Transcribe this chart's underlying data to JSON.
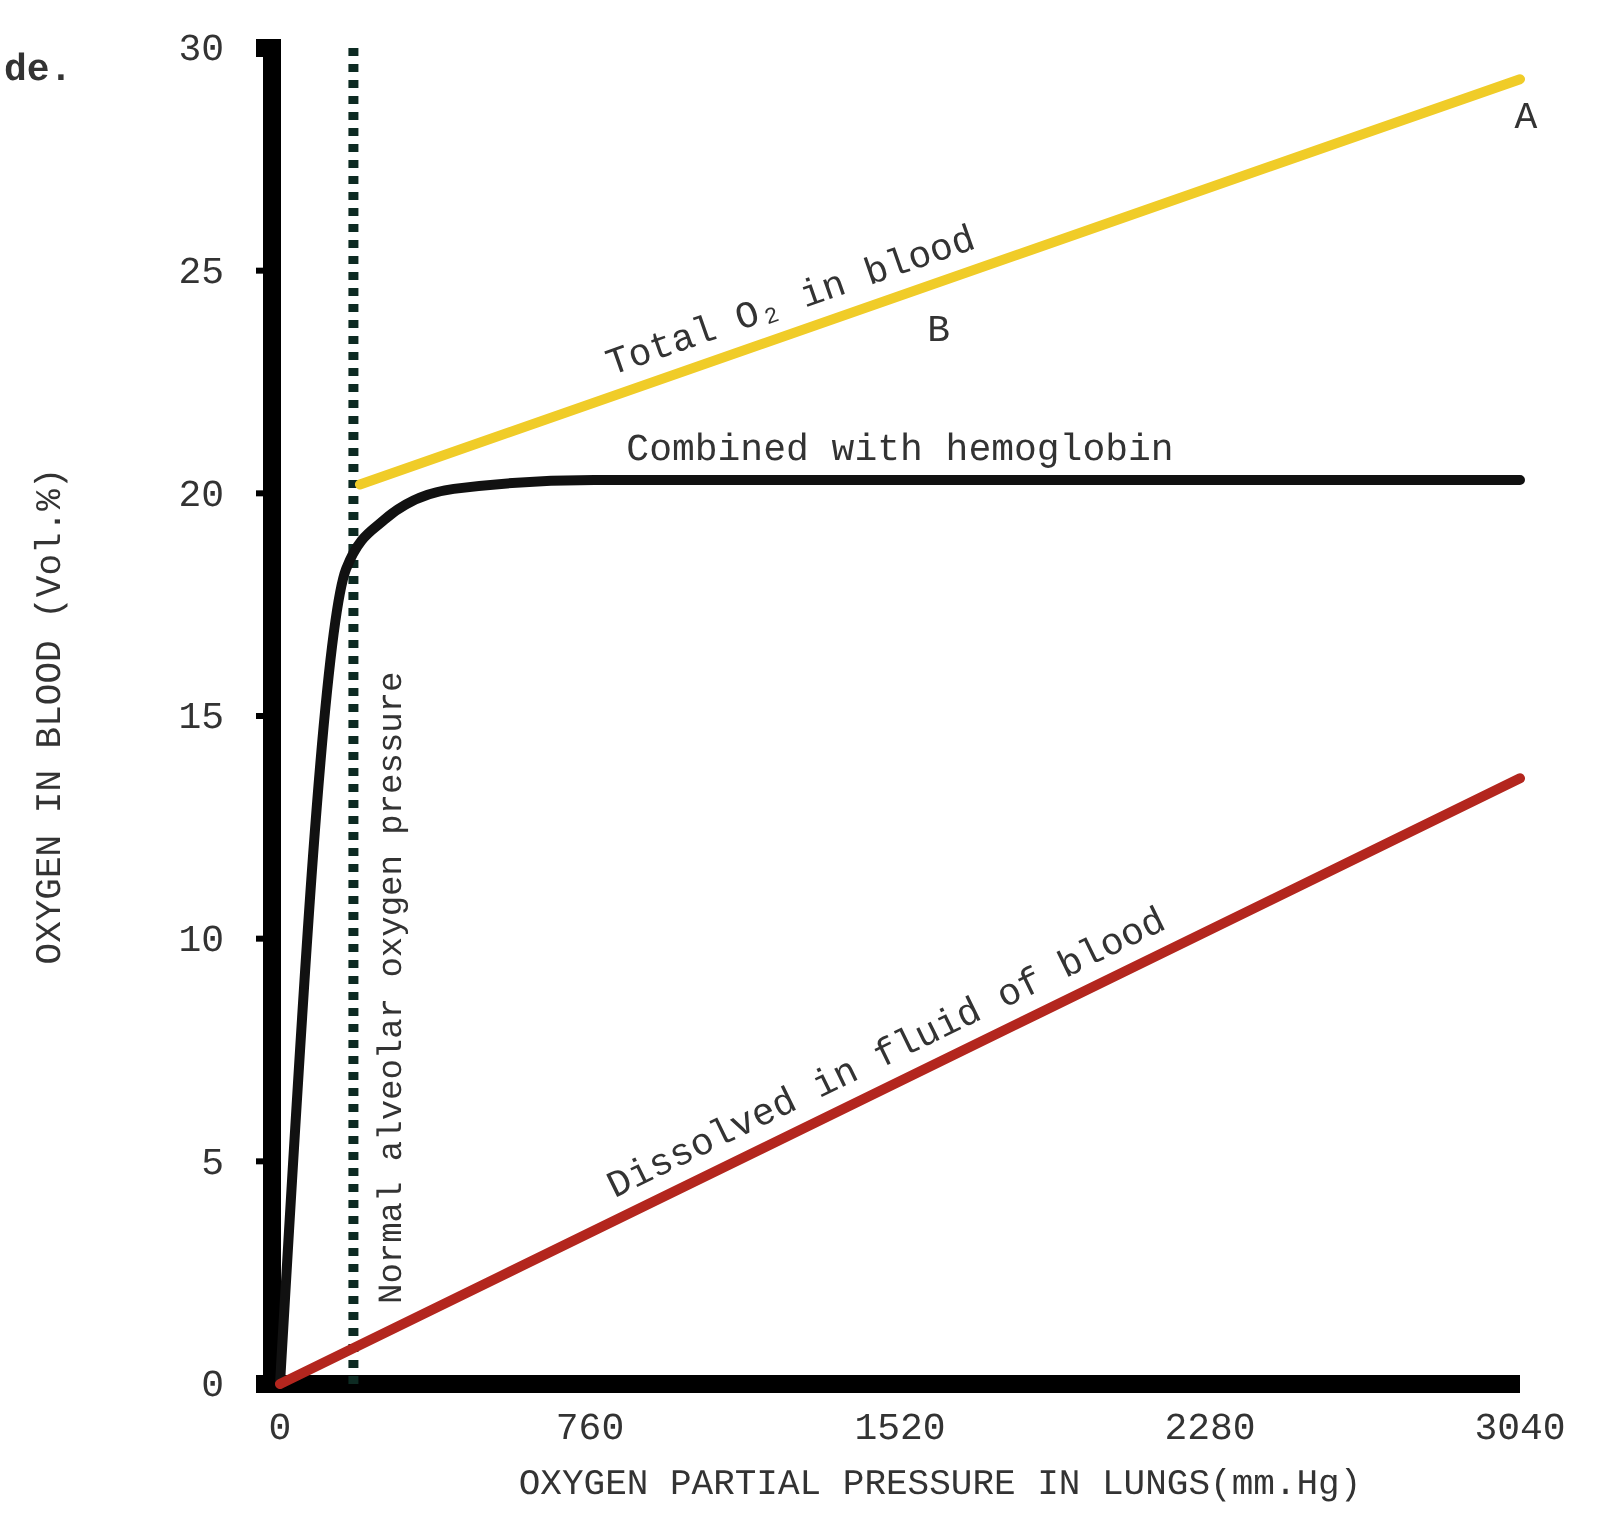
{
  "chart_data": {
    "type": "line",
    "xlabel": "OXYGEN PARTIAL PRESSURE IN LUNGS(mm.Hg)",
    "ylabel": "OXYGEN IN BLOOD (Vol.%)",
    "xlim": [
      0,
      3040
    ],
    "xticks": [
      0,
      760,
      1520,
      2280,
      3040
    ],
    "ylim": [
      0,
      30
    ],
    "yticks": [
      0,
      5,
      10,
      15,
      20,
      25,
      30
    ],
    "marker": "none",
    "line_style": "solid",
    "series": [
      {
        "name": "Total O₂ in blood",
        "color": "#f0cc28",
        "x": [
          196,
          3040
        ],
        "values": [
          20.2,
          29.3
        ]
      },
      {
        "name": "Combined with hemoglobin",
        "color": "#111111",
        "x": [
          0,
          162,
          255,
          426,
          770,
          3040
        ],
        "values": [
          0,
          18.3,
          19.4,
          20.1,
          20.3,
          20.3
        ]
      },
      {
        "name": "Dissolved in fluid of blood",
        "color": "#b3261e",
        "x": [
          0,
          3040
        ],
        "values": [
          0,
          13.6
        ]
      }
    ],
    "ref_lines": [
      {
        "axis": "x",
        "value": 180,
        "label": "Normal alveolar oxygen pressure",
        "line_style": "dotted",
        "color": "#0d2a22"
      }
    ],
    "annotations": [
      {
        "text": "A",
        "x": 3040,
        "y": 29.2
      },
      {
        "text": "B",
        "x": 1600,
        "y": 24.4
      },
      "de."
    ]
  }
}
